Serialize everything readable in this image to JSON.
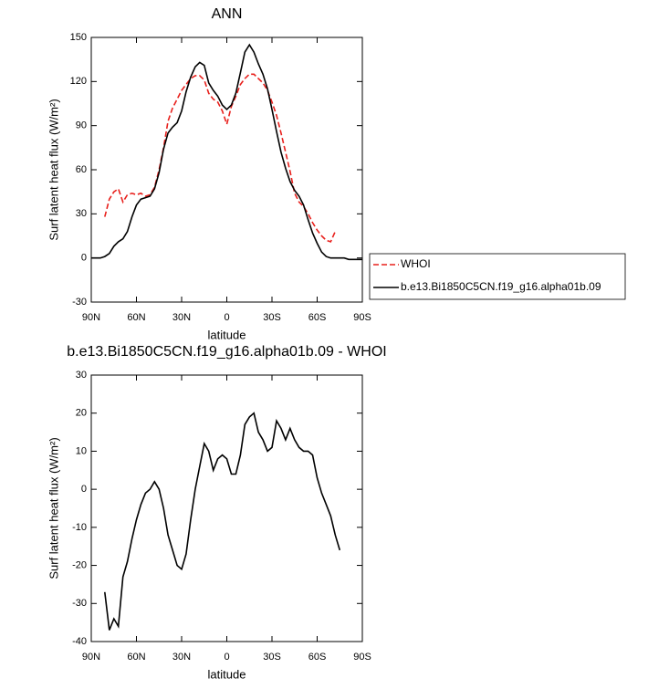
{
  "chart_data": [
    {
      "type": "line",
      "title": "ANN",
      "x_label": "latitude",
      "y_label": "Surf latent heat flux (W/m²)",
      "x": [
        90,
        87,
        84,
        81,
        78,
        75,
        72,
        69,
        66,
        63,
        60,
        57,
        54,
        51,
        48,
        45,
        42,
        39,
        36,
        33,
        30,
        27,
        24,
        21,
        18,
        15,
        12,
        9,
        6,
        3,
        0,
        -3,
        -6,
        -9,
        -12,
        -15,
        -18,
        -21,
        -24,
        -27,
        -30,
        -33,
        -36,
        -39,
        -42,
        -45,
        -48,
        -51,
        -54,
        -57,
        -60,
        -63,
        -66,
        -69,
        -72,
        -75,
        -78,
        -81,
        -84,
        -87,
        -90
      ],
      "series": [
        {
          "name": "WHOI",
          "color": "#e8201c",
          "dash": "dashed",
          "values": [
            null,
            null,
            null,
            28,
            40,
            45,
            47,
            38,
            43,
            44,
            43,
            44,
            42,
            43,
            48,
            60,
            75,
            93,
            102,
            108,
            114,
            118,
            122,
            124,
            124,
            121,
            112,
            108,
            106,
            100,
            91,
            103,
            110,
            118,
            122,
            125,
            125,
            122,
            119,
            114,
            106,
            97,
            85,
            72,
            59,
            44,
            38,
            35,
            30,
            24,
            19,
            15,
            12,
            11,
            18,
            null,
            null,
            null,
            null,
            null,
            null
          ]
        },
        {
          "name": "b.e13.Bi1850C5CN.f19_g16.alpha01b.09",
          "color": "#000000",
          "dash": "solid",
          "values": [
            0,
            0,
            0,
            1,
            3,
            8,
            11,
            13,
            18,
            28,
            36,
            40,
            41,
            42,
            47,
            58,
            74,
            85,
            89,
            92,
            100,
            113,
            123,
            130,
            133,
            131,
            119,
            114,
            110,
            104,
            101,
            104,
            112,
            126,
            140,
            145,
            140,
            132,
            125,
            115,
            101,
            86,
            72,
            61,
            52,
            46,
            42,
            36,
            26,
            17,
            10,
            4,
            1,
            0,
            0,
            0,
            0,
            -1,
            -1,
            -1,
            -1
          ]
        }
      ],
      "xlim": [
        90,
        -90
      ],
      "xticks": [
        {
          "value": 90,
          "label": "90N"
        },
        {
          "value": 60,
          "label": "60N"
        },
        {
          "value": 30,
          "label": "30N"
        },
        0,
        {
          "value": -30,
          "label": "30S"
        },
        {
          "value": -60,
          "label": "60S"
        },
        {
          "value": -90,
          "label": "90S"
        }
      ],
      "ylim": [
        -30,
        150
      ],
      "yticks": [
        -30,
        0,
        30,
        60,
        90,
        120,
        150
      ],
      "legend": "right"
    },
    {
      "type": "line",
      "title": "b.e13.Bi1850C5CN.f19_g16.alpha01b.09 - WHOI",
      "x_label": "latitude",
      "y_label": "Surf latent heat flux (W/m²)",
      "x": [
        90,
        87,
        84,
        81,
        78,
        75,
        72,
        69,
        66,
        63,
        60,
        57,
        54,
        51,
        48,
        45,
        42,
        39,
        36,
        33,
        30,
        27,
        24,
        21,
        18,
        15,
        12,
        9,
        6,
        3,
        0,
        -3,
        -6,
        -9,
        -12,
        -15,
        -18,
        -21,
        -24,
        -27,
        -30,
        -33,
        -36,
        -39,
        -42,
        -45,
        -48,
        -51,
        -54,
        -57,
        -60,
        -63,
        -66,
        -69,
        -72,
        -75,
        -78,
        -81,
        -84,
        -87,
        -90
      ],
      "series": [
        {
          "color": "#000000",
          "dash": "solid",
          "values": [
            null,
            null,
            null,
            -27,
            -37,
            -34,
            -36,
            -23,
            -19,
            -13,
            -8,
            -4,
            -1,
            0,
            2,
            0,
            -5,
            -12,
            -16,
            -20,
            -21,
            -17,
            -8,
            0,
            6,
            12,
            10,
            5,
            8,
            9,
            8,
            4,
            4,
            9,
            17,
            19,
            20,
            15,
            13,
            10,
            11,
            18,
            16,
            13,
            16,
            13,
            11,
            10,
            10,
            9,
            3,
            -1,
            -4,
            -7,
            -12,
            -16,
            null,
            null,
            null,
            null,
            null
          ]
        }
      ],
      "xlim": [
        90,
        -90
      ],
      "xticks": [
        {
          "value": 90,
          "label": "90N"
        },
        {
          "value": 60,
          "label": "60N"
        },
        {
          "value": 30,
          "label": "30N"
        },
        0,
        {
          "value": -30,
          "label": "30S"
        },
        {
          "value": -60,
          "label": "60S"
        },
        {
          "value": -90,
          "label": "90S"
        }
      ],
      "ylim": [
        -40,
        30
      ],
      "yticks": [
        -40,
        -30,
        -20,
        -10,
        0,
        10,
        20,
        30
      ]
    }
  ]
}
